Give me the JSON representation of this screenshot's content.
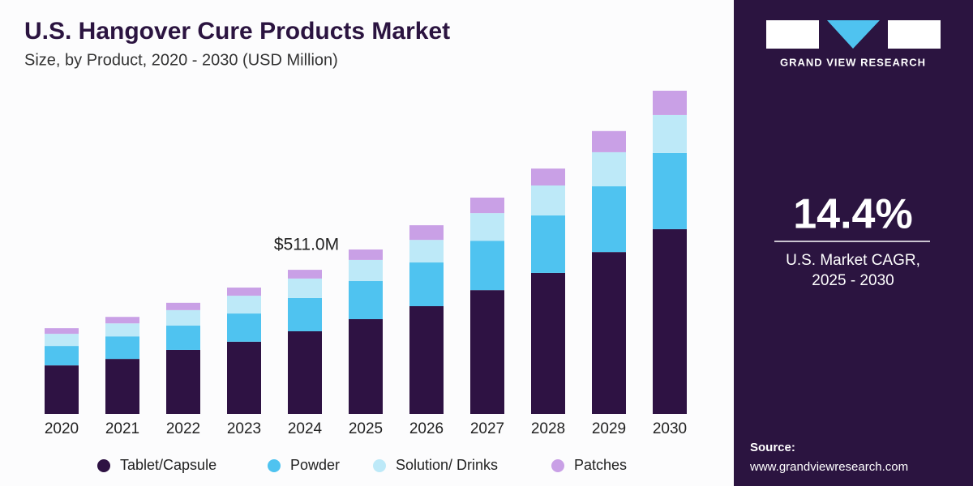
{
  "chart_data": {
    "type": "stacked-bar",
    "title": "U.S. Hangover Cure Products Market",
    "subtitle": "Size, by Product, 2020 - 2030 (USD Million)",
    "categories": [
      "2020",
      "2021",
      "2022",
      "2023",
      "2024",
      "2025",
      "2026",
      "2027",
      "2028",
      "2029",
      "2030"
    ],
    "series": [
      {
        "name": "Tablet/Capsule",
        "color": "#2e1243",
        "values": [
          172,
          195,
          227,
          256,
          293,
          336,
          382,
          439,
          500,
          574,
          655
        ]
      },
      {
        "name": "Powder",
        "color": "#4fc3f0",
        "values": [
          69,
          80,
          86,
          100,
          118,
          135,
          155,
          175,
          204,
          233,
          270
        ]
      },
      {
        "name": "Solution/ Drinks",
        "color": "#bde9f8",
        "values": [
          43,
          46,
          55,
          63,
          69,
          75,
          80,
          98,
          106,
          121,
          135
        ]
      },
      {
        "name": "Patches",
        "color": "#c9a0e6",
        "values": [
          20,
          23,
          26,
          29,
          31,
          37,
          52,
          55,
          60,
          75,
          86
        ]
      }
    ],
    "annotation": {
      "category": "2024",
      "label": "$511.0M"
    }
  },
  "side_panel": {
    "brand": "GRAND VIEW RESEARCH",
    "cagr": "14.4%",
    "cagr_label": "U.S. Market CAGR,",
    "cagr_period": "2025 - 2030",
    "source_label": "Source:",
    "source_url": "www.grandviewresearch.com"
  }
}
